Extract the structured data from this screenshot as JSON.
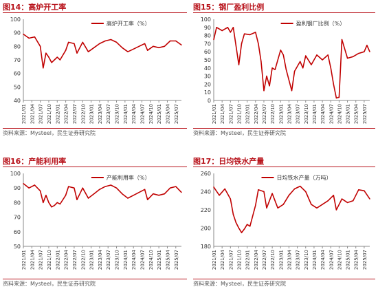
{
  "source_label": "资料来源：Mysteel，民生证券研究院",
  "colors": {
    "accent": "#b8121a",
    "line": "#c00000",
    "axis": "#888888",
    "text": "#333333"
  },
  "x_ticks": [
    "2021/01",
    "2021/04",
    "2021/07",
    "2021/10",
    "2022/01",
    "2022/04",
    "2022/07",
    "2022/10",
    "2023/01",
    "2023/04",
    "2023/07",
    "2023/10",
    "2024/01",
    "2024/04",
    "2024/07",
    "2024/10",
    "2025/01",
    "2025/04",
    "2025/07"
  ],
  "chart_data": [
    {
      "figure_title": "图14：高炉开工率",
      "type": "line",
      "legend": "高炉开工率（%）",
      "legend_position": "top-right",
      "ylim": [
        40,
        100
      ],
      "yticks": [
        40,
        50,
        60,
        70,
        80,
        90,
        100
      ],
      "x": [
        "2021/01",
        "2021/03",
        "2021/05",
        "2021/07",
        "2021/08",
        "2021/09",
        "2021/10",
        "2021/11",
        "2021/12",
        "2022/01",
        "2022/02",
        "2022/04",
        "2022/05",
        "2022/07",
        "2022/08",
        "2022/10",
        "2022/12",
        "2023/02",
        "2023/04",
        "2023/06",
        "2023/08",
        "2023/10",
        "2023/12",
        "2024/02",
        "2024/04",
        "2024/06",
        "2024/08",
        "2024/09",
        "2024/11",
        "2025/01",
        "2025/03",
        "2025/05",
        "2025/07",
        "2025/09"
      ],
      "values": [
        89,
        86,
        87,
        80,
        64,
        75,
        72,
        68,
        70,
        72,
        70,
        77,
        83,
        82,
        75,
        83,
        76,
        79,
        82,
        84,
        85,
        83,
        79,
        76,
        78,
        80,
        82,
        77,
        80,
        79,
        80,
        84,
        84,
        81
      ]
    },
    {
      "figure_title": "图15：钢厂盈利比例",
      "type": "line",
      "legend": "盈利钢厂比例（%）",
      "legend_position": "top-right",
      "ylim": [
        0,
        100
      ],
      "yticks": [
        0,
        10,
        20,
        30,
        40,
        50,
        60,
        70,
        80,
        90,
        100
      ],
      "x": [
        "2021/01",
        "2021/02",
        "2021/04",
        "2021/06",
        "2021/07",
        "2021/08",
        "2021/10",
        "2021/11",
        "2021/12",
        "2022/02",
        "2022/04",
        "2022/05",
        "2022/06",
        "2022/07",
        "2022/08",
        "2022/09",
        "2022/10",
        "2022/11",
        "2023/01",
        "2023/02",
        "2023/03",
        "2023/05",
        "2023/06",
        "2023/08",
        "2023/09",
        "2023/10",
        "2023/12",
        "2024/02",
        "2024/04",
        "2024/06",
        "2024/07",
        "2024/08",
        "2024/09",
        "2024/10",
        "2024/11",
        "2025/01",
        "2025/03",
        "2025/05",
        "2025/07",
        "2025/08",
        "2025/09"
      ],
      "values": [
        75,
        90,
        86,
        90,
        84,
        90,
        44,
        70,
        82,
        81,
        84,
        70,
        48,
        12,
        30,
        18,
        40,
        38,
        62,
        56,
        38,
        12,
        36,
        48,
        40,
        55,
        44,
        56,
        50,
        56,
        40,
        20,
        3,
        4,
        75,
        52,
        54,
        58,
        60,
        68,
        60
      ]
    },
    {
      "figure_title": "图16：产能利用率",
      "type": "line",
      "legend": "产能利用率（%）",
      "legend_position": "top-right",
      "ylim": [
        50,
        100
      ],
      "yticks": [
        50,
        60,
        70,
        80,
        90,
        100
      ],
      "x": [
        "2021/01",
        "2021/03",
        "2021/05",
        "2021/07",
        "2021/08",
        "2021/09",
        "2021/10",
        "2021/11",
        "2021/12",
        "2022/01",
        "2022/02",
        "2022/04",
        "2022/05",
        "2022/07",
        "2022/08",
        "2022/10",
        "2022/12",
        "2023/02",
        "2023/04",
        "2023/06",
        "2023/08",
        "2023/10",
        "2023/12",
        "2024/02",
        "2024/04",
        "2024/06",
        "2024/08",
        "2024/09",
        "2024/11",
        "2025/01",
        "2025/03",
        "2025/05",
        "2025/07",
        "2025/09"
      ],
      "values": [
        93,
        90,
        92,
        88,
        80,
        85,
        80,
        77,
        78,
        80,
        79,
        85,
        91,
        90,
        82,
        90,
        83,
        86,
        89,
        91,
        92,
        90,
        86,
        83,
        85,
        87,
        89,
        82,
        86,
        85,
        86,
        90,
        91,
        87
      ]
    },
    {
      "figure_title": "图17：日均铁水产量",
      "type": "line",
      "legend": "日均铁水产量（万吨）",
      "legend_position": "top-center",
      "ylim": [
        180,
        260
      ],
      "yticks": [
        180,
        200,
        220,
        240,
        260
      ],
      "x": [
        "2021/01",
        "2021/03",
        "2021/05",
        "2021/07",
        "2021/08",
        "2021/09",
        "2021/10",
        "2021/11",
        "2021/12",
        "2022/01",
        "2022/02",
        "2022/04",
        "2022/05",
        "2022/07",
        "2022/08",
        "2022/10",
        "2022/12",
        "2023/02",
        "2023/04",
        "2023/06",
        "2023/08",
        "2023/10",
        "2023/12",
        "2024/02",
        "2024/04",
        "2024/06",
        "2024/08",
        "2024/09",
        "2024/11",
        "2025/01",
        "2025/03",
        "2025/05",
        "2025/07",
        "2025/09"
      ],
      "values": [
        245,
        236,
        243,
        232,
        215,
        206,
        200,
        195,
        199,
        204,
        202,
        225,
        242,
        240,
        222,
        238,
        222,
        226,
        236,
        243,
        246,
        240,
        226,
        222,
        226,
        230,
        236,
        220,
        232,
        228,
        230,
        242,
        241,
        232
      ]
    }
  ]
}
